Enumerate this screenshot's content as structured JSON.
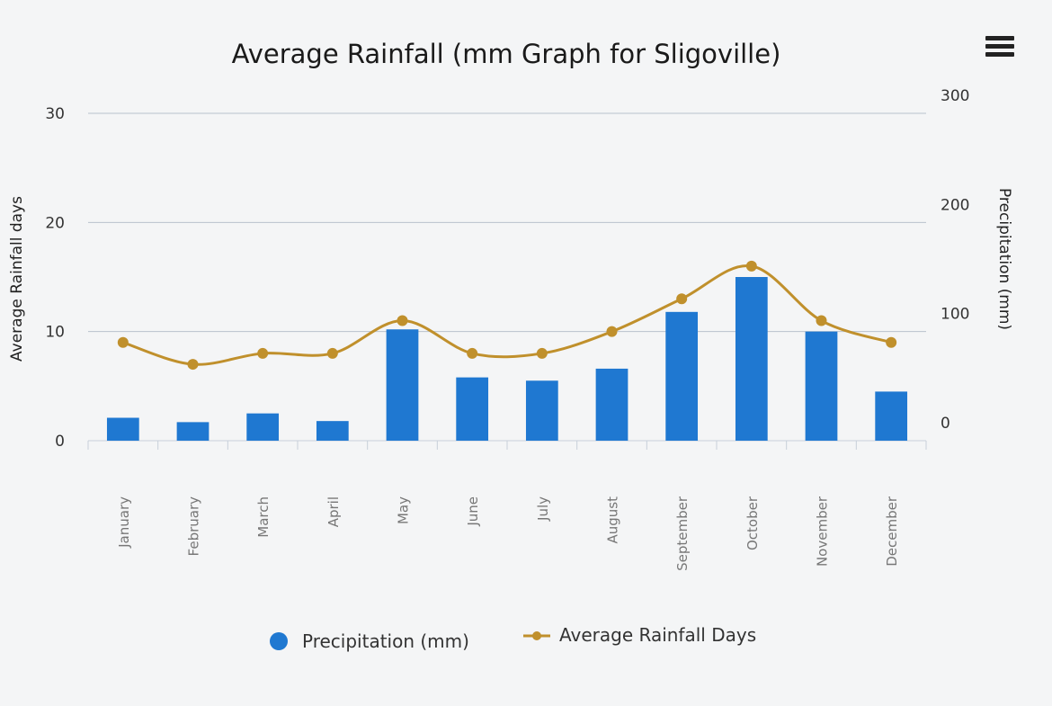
{
  "chart_data": {
    "type": "bar",
    "title": "Average Rainfall (mm Graph for Sligoville)",
    "categories": [
      "January",
      "February",
      "March",
      "April",
      "May",
      "June",
      "July",
      "August",
      "September",
      "October",
      "November",
      "December"
    ],
    "series": [
      {
        "name": "Precipitation (mm)",
        "type": "bar",
        "axis": "right",
        "color": "#1f78d1",
        "values": [
          21,
          17,
          25,
          18,
          102,
          58,
          55,
          66,
          118,
          150,
          100,
          45
        ]
      },
      {
        "name": "Average Rainfall Days",
        "type": "line",
        "axis": "left",
        "color": "#c0902c",
        "values": [
          9,
          7,
          8,
          8,
          11,
          8,
          8,
          10,
          13,
          16,
          11,
          9
        ]
      }
    ],
    "left_axis": {
      "label": "Average Rainfall days",
      "range": [
        0,
        30
      ],
      "ticks": [
        "0",
        "10",
        "20",
        "30"
      ]
    },
    "right_axis": {
      "label": "Precipitation (mm)",
      "range": [
        0,
        300
      ],
      "ticks": [
        "0",
        "100",
        "200",
        "300"
      ]
    },
    "grid": true,
    "legend_position": "bottom-center"
  },
  "menu_icon": "hamburger-menu-icon"
}
